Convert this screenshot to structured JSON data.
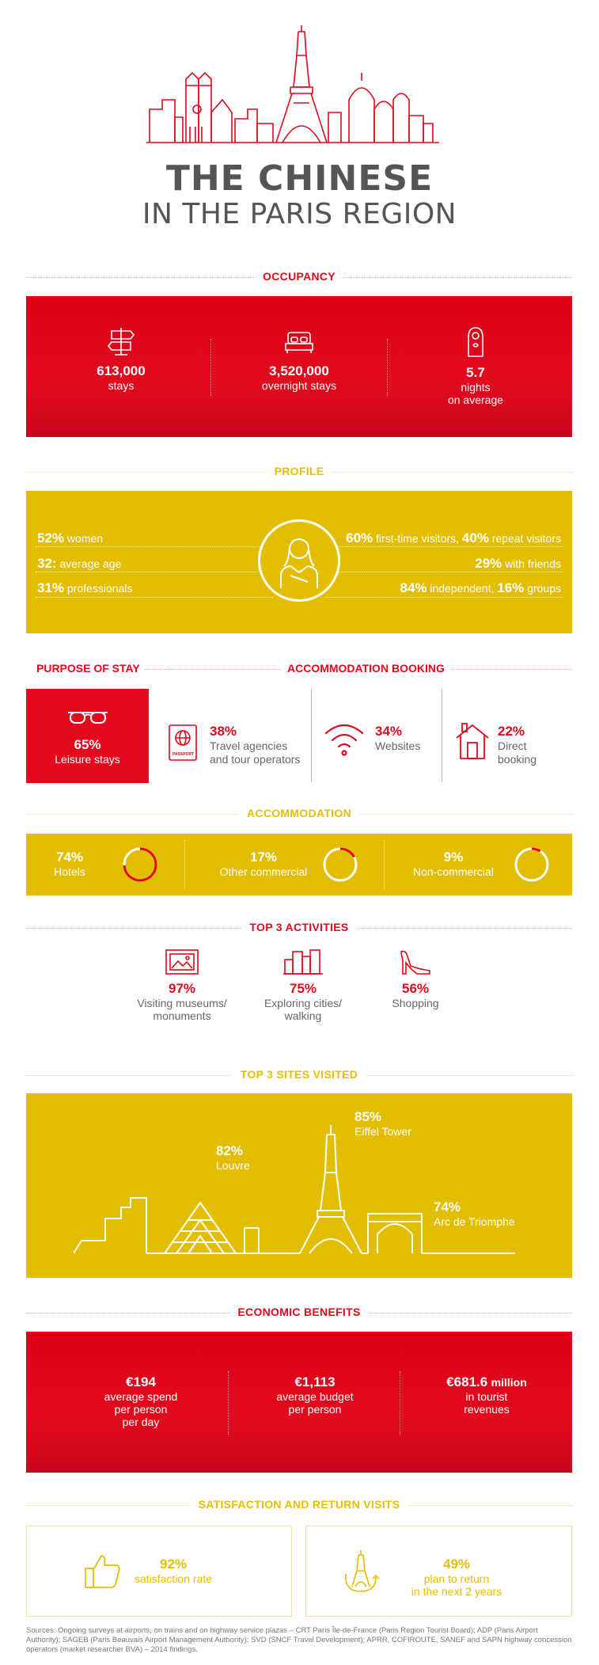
{
  "header": {
    "title_line1": "THE CHINESE",
    "title_line2": "IN THE PARIS REGION"
  },
  "occupancy": {
    "heading": "OCCUPANCY",
    "stats": [
      {
        "icon": "signpost-icon",
        "value": "613,000",
        "label": "stays"
      },
      {
        "icon": "bed-icon",
        "value": "3,520,000",
        "label": "overnight stays"
      },
      {
        "icon": "door-hanger-icon",
        "value": "5.7",
        "label": "nights",
        "label2": "on average"
      }
    ]
  },
  "profile": {
    "heading": "PROFILE",
    "left": [
      {
        "value": "52%",
        "label": "women"
      },
      {
        "value": "32:",
        "label": "average age"
      },
      {
        "value": "31%",
        "label": "professionals"
      }
    ],
    "right": [
      {
        "value": "60%",
        "label": "first-time visitors,",
        "value2": "40%",
        "label2": "repeat visitors"
      },
      {
        "value": "29%",
        "label": "with friends"
      },
      {
        "value": "84%",
        "label": "independent,",
        "value2": "16%",
        "label2": "groups"
      }
    ]
  },
  "purpose": {
    "heading": "PURPOSE OF STAY",
    "value": "65%",
    "label": "Leisure stays"
  },
  "booking": {
    "heading": "ACCOMMODATION BOOKING",
    "items": [
      {
        "icon": "passport-icon",
        "value": "38%",
        "label": "Travel agencies",
        "label2": "and tour operators",
        "badge": "PASSPORT"
      },
      {
        "icon": "wifi-icon",
        "value": "34%",
        "label": "Websites",
        "label2": ""
      },
      {
        "icon": "house-icon",
        "value": "22%",
        "label": "Direct",
        "label2": "booking"
      }
    ]
  },
  "accommodation": {
    "heading": "ACCOMMODATION",
    "items": [
      {
        "value": "74%",
        "label": "Hotels",
        "share": 0.74
      },
      {
        "value": "17%",
        "label": "Other commercial",
        "share": 0.17
      },
      {
        "value": "9%",
        "label": "Non-commercial",
        "share": 0.09
      }
    ]
  },
  "activities": {
    "heading": "TOP 3 ACTIVITIES",
    "items": [
      {
        "icon": "painting-icon",
        "value": "97%",
        "label": "Visiting museums/",
        "label2": "monuments"
      },
      {
        "icon": "city-icon",
        "value": "75%",
        "label": "Exploring cities/",
        "label2": "walking"
      },
      {
        "icon": "high-heel-icon",
        "value": "56%",
        "label": "Shopping",
        "label2": ""
      }
    ]
  },
  "sites": {
    "heading": "TOP 3 SITES VISITED",
    "items": [
      {
        "value": "82%",
        "label": "Louvre"
      },
      {
        "value": "85%",
        "label": "Eiffel Tower"
      },
      {
        "value": "74%",
        "label": "Arc de Triomphe"
      }
    ]
  },
  "economic": {
    "heading": "ECONOMIC BENEFITS",
    "items": [
      {
        "value": "€194",
        "suffix": "",
        "label": "average spend",
        "label2": "per person",
        "label3": "per day"
      },
      {
        "value": "€1,113",
        "suffix": "",
        "label": "average budget",
        "label2": "per person",
        "label3": ""
      },
      {
        "value": "€681.6",
        "suffix": "million",
        "label": "in tourist",
        "label2": "revenues",
        "label3": ""
      }
    ]
  },
  "satisfaction": {
    "heading": "SATISFACTION AND RETURN VISITS",
    "items": [
      {
        "icon": "thumbs-up-icon",
        "value": "92%",
        "label": "satisfaction rate",
        "label2": ""
      },
      {
        "icon": "eiffel-return-icon",
        "value": "49%",
        "label": "plan to return",
        "label2": "in the next 2 years"
      }
    ]
  },
  "sources": "Sources: Ongoing surveys at airports, on trains and on highway service plazas – CRT Paris Île-de-France (Paris Region Tourist Board); ADP (Paris Airport Authority); SAGEB (Paris Beauvais Airport Management Authority); SVD (SNCF Travel Development); APRR, COFIROUTE, SANEF and SAPN highway concession operators (market researcher BVA) – 2014 findings.",
  "colors": {
    "red": "#e2071b",
    "yellow": "#e3bd00",
    "grey": "#555555"
  }
}
